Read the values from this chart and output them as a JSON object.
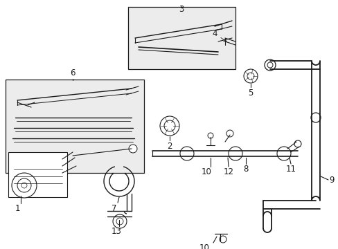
{
  "bg_color": "#ffffff",
  "line_color": "#1a1a1a",
  "box_fill": "#ececec",
  "font_size": 8.5
}
